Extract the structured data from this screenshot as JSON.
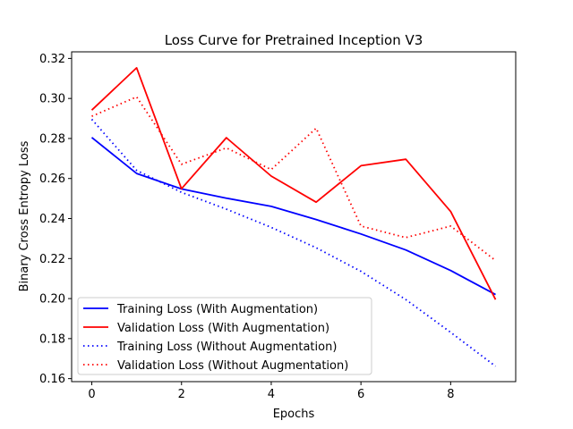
{
  "chart_data": {
    "type": "line",
    "title": "Loss Curve for Pretrained Inception V3",
    "xlabel": "Epochs",
    "ylabel": "Binary Cross Entropy Loss",
    "xlim": [
      -0.45,
      9.45
    ],
    "ylim": [
      0.1585,
      0.3233
    ],
    "xticks": [
      0,
      2,
      4,
      6,
      8
    ],
    "yticks": [
      0.16,
      0.18,
      0.2,
      0.22,
      0.24,
      0.26,
      0.28,
      0.3,
      0.32
    ],
    "x": [
      0,
      1,
      2,
      3,
      4,
      5,
      6,
      7,
      8,
      9
    ],
    "grid": false,
    "legend_position": "lower-left",
    "series": [
      {
        "name": "Training Loss (With Augmentation)",
        "color": "#0000ff",
        "linestyle": "solid",
        "values": [
          0.2805,
          0.2625,
          0.2548,
          0.2502,
          0.2461,
          0.2395,
          0.2323,
          0.2243,
          0.214,
          0.202
        ]
      },
      {
        "name": "Validation Loss (With Augmentation)",
        "color": "#ff0000",
        "linestyle": "solid",
        "values": [
          0.2942,
          0.3153,
          0.2549,
          0.2804,
          0.2612,
          0.2482,
          0.2664,
          0.2696,
          0.2435,
          0.1995
        ]
      },
      {
        "name": "Training Loss (Without Augmentation)",
        "color": "#0000ff",
        "linestyle": "dotted",
        "values": [
          0.2896,
          0.2641,
          0.2531,
          0.2447,
          0.2356,
          0.2254,
          0.2136,
          0.1995,
          0.1831,
          0.1662
        ]
      },
      {
        "name": "Validation Loss (Without Augmentation)",
        "color": "#ff0000",
        "linestyle": "dotted",
        "values": [
          0.2911,
          0.3008,
          0.2671,
          0.2753,
          0.2645,
          0.2851,
          0.2362,
          0.2305,
          0.2362,
          0.219
        ]
      }
    ]
  }
}
